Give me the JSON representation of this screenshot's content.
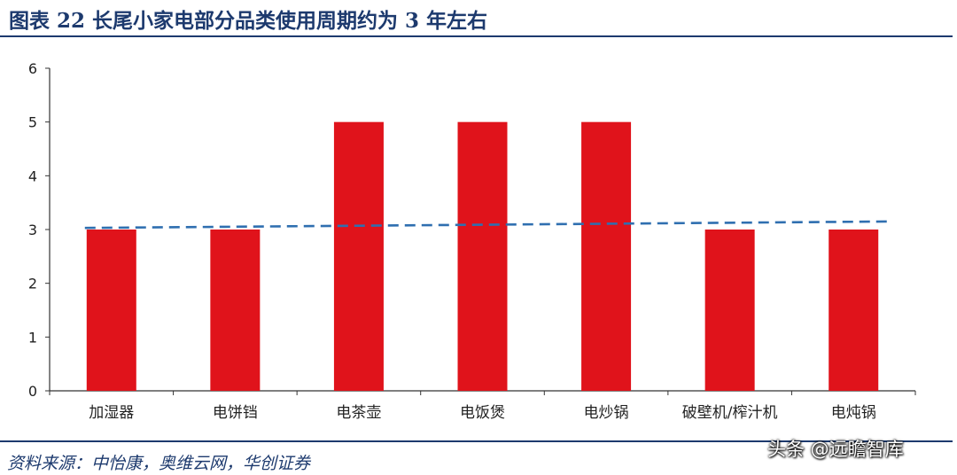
{
  "header": {
    "title": "图表 22   长尾小家电部分品类使用周期约为 3 年左右"
  },
  "source": "资料来源：中怡康，奥维云网，华创证券",
  "watermark": "头条 @远瞻智库",
  "colors": {
    "bar": "#e0131b",
    "trend": "#2f6fb0",
    "title": "#1d3a6e",
    "axis": "#333333"
  },
  "chart_data": {
    "type": "bar",
    "title": "",
    "xlabel": "",
    "ylabel": "",
    "ylim": [
      0,
      6
    ],
    "yticks": [
      "0",
      "1",
      "2",
      "3",
      "4",
      "5",
      "6"
    ],
    "grid": false,
    "categories": [
      "加湿器",
      "电饼铛",
      "电茶壶",
      "电饭煲",
      "电炒锅",
      "破壁机/榨汁机",
      "电炖锅"
    ],
    "values": [
      3,
      3,
      5,
      5,
      5,
      3,
      3
    ],
    "trendline": {
      "style": "dashed",
      "start": 3.03,
      "end": 3.15
    }
  }
}
